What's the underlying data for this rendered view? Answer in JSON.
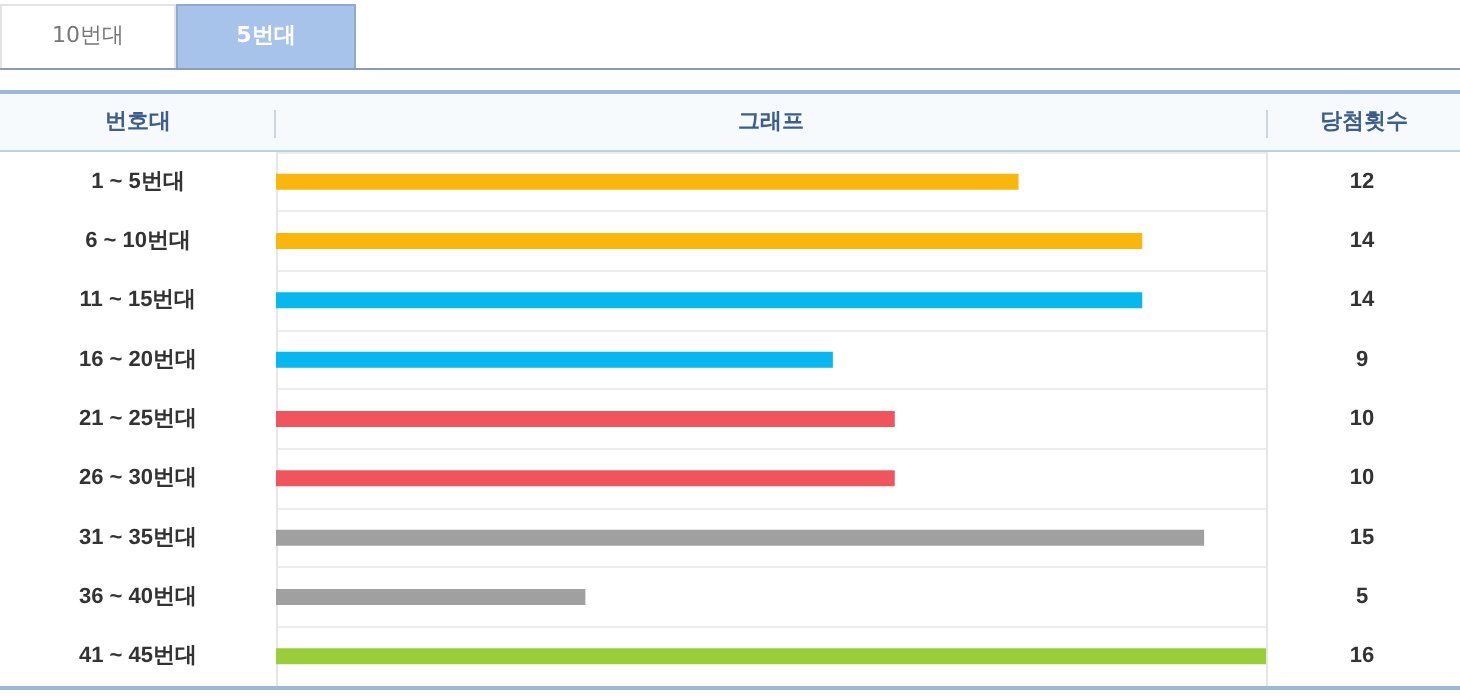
{
  "chart_data": {
    "type": "bar",
    "orientation": "horizontal",
    "ylabel": "번호대",
    "xlabel": "그래프",
    "annotations": [
      "10번대",
      "5번대",
      "당첨횟수"
    ],
    "categories": [
      "1 ~ 5번대",
      "6 ~ 10번대",
      "11 ~ 15번대",
      "16 ~ 20번대",
      "21 ~ 25번대",
      "26 ~ 30번대",
      "31 ~ 35번대",
      "36 ~ 40번대",
      "41 ~ 45번대"
    ],
    "values": [
      12,
      14,
      14,
      9,
      10,
      10,
      15,
      5,
      16
    ],
    "colors": [
      "#f9b60c",
      "#f9b60c",
      "#06b8ee",
      "#06b8ee",
      "#f0545c",
      "#f0545c",
      "#a0a0a0",
      "#a0a0a0",
      "#9acd3a"
    ],
    "xlim": [
      0,
      16
    ],
    "tick_labels": "y",
    "data_labels": true,
    "grid": "y"
  }
}
